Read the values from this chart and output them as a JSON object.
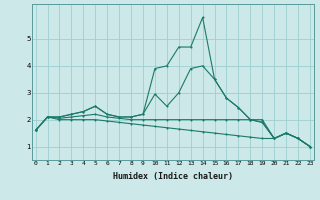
{
  "xlabel": "Humidex (Indice chaleur)",
  "x": [
    0,
    1,
    2,
    3,
    4,
    5,
    6,
    7,
    8,
    9,
    10,
    11,
    12,
    13,
    14,
    15,
    16,
    17,
    18,
    19,
    20,
    21,
    22,
    23
  ],
  "line1": [
    1.6,
    2.1,
    2.1,
    2.2,
    2.3,
    2.5,
    2.2,
    2.1,
    2.1,
    2.2,
    3.9,
    4.0,
    4.7,
    4.7,
    5.8,
    3.5,
    2.8,
    2.45,
    2.0,
    1.9,
    1.3,
    1.5,
    1.3,
    1.0
  ],
  "line2": [
    1.6,
    2.1,
    2.1,
    2.2,
    2.3,
    2.5,
    2.2,
    2.1,
    2.1,
    2.2,
    2.95,
    2.5,
    3.0,
    3.9,
    4.0,
    3.5,
    2.8,
    2.45,
    2.0,
    1.9,
    1.3,
    1.5,
    1.3,
    1.0
  ],
  "line3": [
    1.6,
    2.1,
    2.05,
    2.1,
    2.15,
    2.2,
    2.1,
    2.05,
    2.0,
    2.0,
    2.0,
    2.0,
    2.0,
    2.0,
    2.0,
    2.0,
    2.0,
    2.0,
    2.0,
    2.0,
    1.3,
    1.5,
    1.3,
    1.0
  ],
  "line4": [
    1.6,
    2.1,
    2.0,
    2.0,
    2.0,
    2.0,
    1.95,
    1.9,
    1.85,
    1.8,
    1.75,
    1.7,
    1.65,
    1.6,
    1.55,
    1.5,
    1.45,
    1.4,
    1.35,
    1.3,
    1.3,
    1.5,
    1.3,
    1.0
  ],
  "line_color": "#1a7a6a",
  "bg_color": "#cce8e8",
  "grid_color": "#9ecece",
  "ylim": [
    0.5,
    6.3
  ],
  "yticks": [
    1,
    2,
    3,
    4,
    5
  ],
  "xlim": [
    -0.3,
    23.3
  ],
  "tick_fontsize": 4.5,
  "xlabel_fontsize": 6.0
}
